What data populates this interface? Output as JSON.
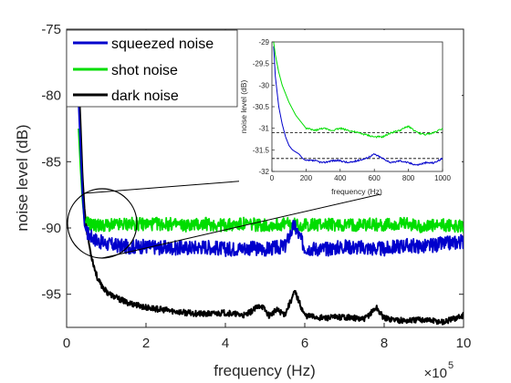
{
  "chart_data": [
    {
      "type": "line",
      "xlabel": "frequency (Hz)",
      "ylabel": "noise level (dB)",
      "x_multiplier": "×10",
      "x_multiplier_exp": "5",
      "xlim": [
        0,
        10
      ],
      "ylim": [
        -97.5,
        -75
      ],
      "xticks": [
        "0",
        "2",
        "4",
        "6",
        "8",
        "10"
      ],
      "yticks": [
        "-75",
        "-80",
        "-85",
        "-90",
        "-95"
      ],
      "legend_position": "top-left",
      "series": [
        {
          "name": "squeezed noise",
          "color": "#0000cc",
          "x": [
            0.3,
            0.35,
            0.4,
            0.45,
            0.5,
            0.6,
            0.7,
            0.8,
            1.0,
            1.2,
            1.5,
            2.0,
            2.5,
            3.0,
            3.5,
            4.0,
            4.5,
            5.0,
            5.5,
            5.73,
            6.0,
            6.5,
            7.0,
            7.5,
            8.0,
            8.5,
            9.0,
            9.5,
            10.0
          ],
          "y": [
            -80.5,
            -84.0,
            -87.5,
            -89.8,
            -90.3,
            -90.6,
            -90.8,
            -91.0,
            -91.2,
            -91.3,
            -91.4,
            -91.4,
            -91.5,
            -91.5,
            -91.4,
            -91.6,
            -91.5,
            -91.6,
            -91.4,
            -89.8,
            -91.5,
            -91.6,
            -91.4,
            -91.5,
            -91.6,
            -91.3,
            -91.4,
            -91.2,
            -91.0
          ]
        },
        {
          "name": "shot noise",
          "color": "#00dd00",
          "x": [
            0.3,
            0.35,
            0.4,
            0.45,
            0.5,
            0.6,
            0.7,
            0.8,
            1.0,
            1.2,
            1.5,
            2.0,
            2.5,
            3.0,
            3.5,
            4.0,
            4.5,
            5.0,
            5.5,
            6.0,
            6.5,
            7.0,
            7.5,
            8.0,
            8.5,
            9.0,
            9.5,
            10.0
          ],
          "y": [
            -82.5,
            -85.5,
            -88.0,
            -89.5,
            -89.6,
            -89.7,
            -89.8,
            -89.8,
            -89.8,
            -89.8,
            -89.7,
            -89.7,
            -89.7,
            -89.8,
            -89.7,
            -89.8,
            -89.7,
            -89.8,
            -89.7,
            -89.8,
            -89.7,
            -89.8,
            -89.7,
            -89.8,
            -89.7,
            -89.9,
            -89.8,
            -89.9
          ]
        },
        {
          "name": "dark noise",
          "color": "#000000",
          "x": [
            0.3,
            0.35,
            0.4,
            0.45,
            0.5,
            0.6,
            0.7,
            0.8,
            1.0,
            1.2,
            1.5,
            2.0,
            2.5,
            3.0,
            3.5,
            4.0,
            4.5,
            4.9,
            5.1,
            5.3,
            5.5,
            5.75,
            6.0,
            6.5,
            7.0,
            7.5,
            7.8,
            8.0,
            8.5,
            9.0,
            9.5,
            10.0
          ],
          "y": [
            -78.5,
            -82.0,
            -86.0,
            -88.5,
            -90.0,
            -91.8,
            -93.0,
            -94.0,
            -94.8,
            -95.2,
            -95.6,
            -96.0,
            -96.2,
            -96.4,
            -96.5,
            -96.4,
            -96.6,
            -95.8,
            -96.6,
            -96.2,
            -96.5,
            -94.8,
            -96.6,
            -96.8,
            -96.7,
            -96.9,
            -96.0,
            -96.8,
            -97.0,
            -96.9,
            -97.1,
            -96.6
          ]
        }
      ]
    },
    {
      "type": "line",
      "role": "inset",
      "xlabel": "frequency (Hz)",
      "ylabel": "noise level (dB)",
      "xlim": [
        0,
        1000
      ],
      "ylim": [
        -32,
        -29
      ],
      "xticks": [
        "0",
        "200",
        "400",
        "600",
        "800",
        "1000"
      ],
      "yticks": [
        "-29",
        "-29.5",
        "-30",
        "-30.5",
        "-31",
        "-31.5",
        "-32"
      ],
      "reference_lines": [
        -31.1,
        -31.7
      ],
      "series": [
        {
          "name": "squeezed noise",
          "color": "#0000cc",
          "x": [
            10,
            20,
            40,
            60,
            80,
            100,
            120,
            140,
            160,
            180,
            200,
            250,
            300,
            350,
            400,
            450,
            500,
            550,
            600,
            650,
            700,
            750,
            800,
            850,
            900,
            950,
            1000
          ],
          "y": [
            -29.1,
            -29.8,
            -30.5,
            -30.9,
            -31.2,
            -31.4,
            -31.5,
            -31.55,
            -31.6,
            -31.7,
            -31.75,
            -31.75,
            -31.8,
            -31.75,
            -31.75,
            -31.8,
            -31.75,
            -31.7,
            -31.6,
            -31.7,
            -31.8,
            -31.75,
            -31.8,
            -31.85,
            -31.8,
            -31.8,
            -31.7
          ]
        },
        {
          "name": "shot noise",
          "color": "#00dd00",
          "x": [
            10,
            20,
            40,
            60,
            80,
            100,
            120,
            140,
            160,
            180,
            200,
            250,
            300,
            350,
            400,
            450,
            500,
            550,
            600,
            650,
            700,
            750,
            800,
            850,
            900,
            950,
            1000
          ],
          "y": [
            -29.0,
            -29.3,
            -29.7,
            -30.0,
            -30.2,
            -30.4,
            -30.55,
            -30.7,
            -30.8,
            -30.9,
            -31.0,
            -31.05,
            -31.0,
            -31.05,
            -31.0,
            -31.05,
            -31.1,
            -31.15,
            -31.2,
            -31.2,
            -31.1,
            -31.05,
            -30.95,
            -31.1,
            -31.15,
            -31.1,
            -31.0
          ]
        }
      ]
    }
  ]
}
